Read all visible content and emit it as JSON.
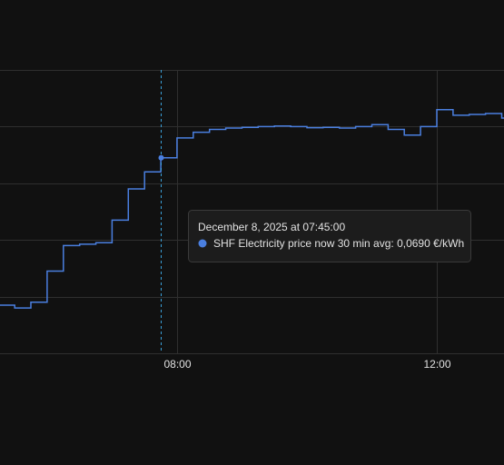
{
  "chart_data": {
    "type": "step-line",
    "x": [
      5.25,
      5.5,
      5.75,
      6.0,
      6.25,
      6.5,
      6.75,
      7.0,
      7.25,
      7.5,
      7.75,
      8.0,
      8.25,
      8.5,
      8.75,
      9.0,
      9.25,
      9.5,
      9.75,
      10.0,
      10.25,
      10.5,
      10.75,
      11.0,
      11.25,
      11.5,
      11.75,
      12.0,
      12.25,
      12.5,
      12.75,
      13.0
    ],
    "values": [
      0.017,
      0.016,
      0.018,
      0.029,
      0.038,
      0.0385,
      0.039,
      0.047,
      0.058,
      0.064,
      0.069,
      0.076,
      0.078,
      0.079,
      0.0795,
      0.0797,
      0.08,
      0.0802,
      0.08,
      0.0796,
      0.0797,
      0.0795,
      0.08,
      0.0807,
      0.079,
      0.077,
      0.08,
      0.086,
      0.084,
      0.0843,
      0.0846,
      0.083
    ],
    "color": "#4a7fe0",
    "xlim": [
      5.274,
      13.035
    ],
    "xticks": [
      {
        "value": 8,
        "label": "08:00"
      },
      {
        "value": 12,
        "label": "12:00"
      }
    ],
    "ylim": [
      0,
      0.1
    ],
    "yticks": [
      0,
      0.02,
      0.04,
      0.06,
      0.08,
      0.1
    ],
    "grid": true,
    "tooltip": {
      "index": 10,
      "title": "December 8, 2025 at 07:45:00",
      "text": "SHF Electricity price now 30 min avg: 0,0690 €/kWh"
    }
  }
}
